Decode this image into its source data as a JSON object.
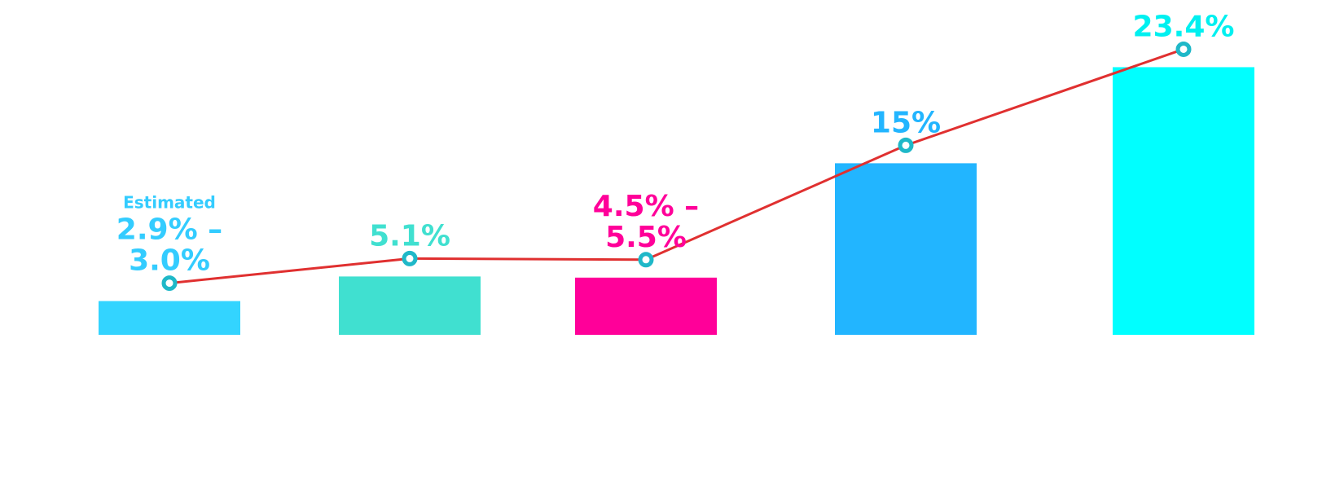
{
  "chart_data": {
    "type": "bar",
    "categories": [
      "",
      "",
      "",
      "",
      ""
    ],
    "values": [
      2.95,
      5.1,
      5.0,
      15,
      23.4
    ],
    "line_values": [
      2.95,
      5.1,
      5.0,
      15,
      23.4
    ],
    "ylim": [
      0,
      25
    ],
    "grid": false,
    "legend": "none",
    "bar_colors": [
      "#33D4FF",
      "#40E0D0",
      "#FF0099",
      "#22B5FF",
      "#00FFFF"
    ],
    "line_color": "#E03030",
    "marker_color": "#1FB8C8",
    "data_labels": [
      {
        "prefix": "Estimated",
        "lines": [
          "2.9% –",
          "3.0%"
        ],
        "color": "#33CCFF"
      },
      {
        "prefix": "",
        "lines": [
          "5.1%"
        ],
        "color": "#40E0D0"
      },
      {
        "prefix": "",
        "lines": [
          "4.5% –",
          "5.5%"
        ],
        "color": "#FF0099"
      },
      {
        "prefix": "",
        "lines": [
          "15%"
        ],
        "color": "#22B5FF"
      },
      {
        "prefix": "",
        "lines": [
          "23.4%"
        ],
        "color": "#00F0F0"
      }
    ],
    "title": "",
    "xlabel": "",
    "ylabel": ""
  }
}
